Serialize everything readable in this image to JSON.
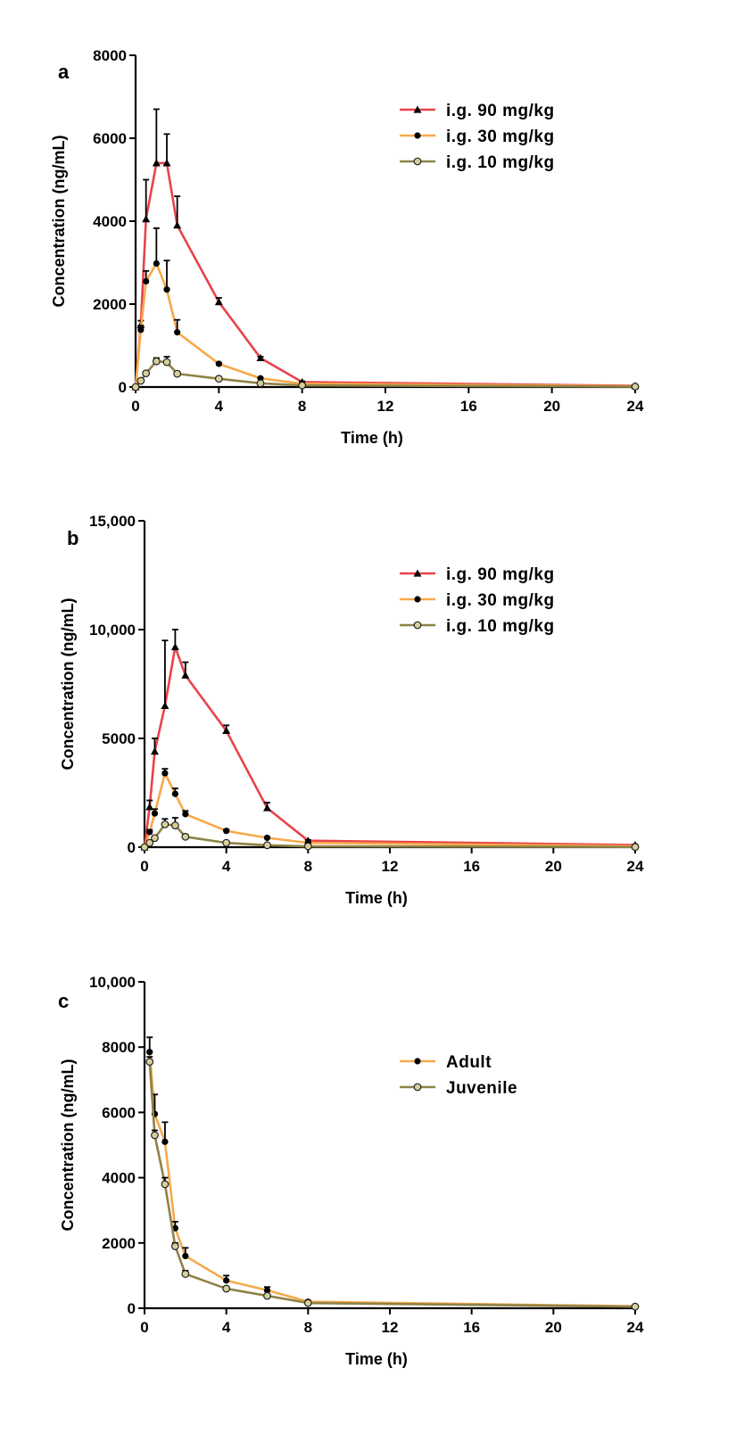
{
  "colors": {
    "red": "#e8434b",
    "orange": "#f7a94b",
    "olive": "#8f8246",
    "marker_dark": "#000000",
    "marker_light": "#d6cf9a"
  },
  "chart_data": [
    {
      "panel": "a",
      "type": "line",
      "xlabel": "Time (h)",
      "ylabel": "Concentration (ng/mL)",
      "xlim": [
        0,
        24
      ],
      "ylim": [
        0,
        8000
      ],
      "xticks": [
        0,
        4,
        8,
        12,
        16,
        20,
        24
      ],
      "xtick_labels": [
        "0",
        "4",
        "8",
        "12",
        "16",
        "20",
        "24"
      ],
      "yticks": [
        0,
        2000,
        4000,
        6000,
        8000
      ],
      "ytick_labels": [
        "0",
        "2000",
        "4000",
        "6000",
        "8000"
      ],
      "legend_position": "top-right",
      "series": [
        {
          "name": "i.g. 90 mg/kg",
          "color": "#e8434b",
          "marker": "triangle",
          "x": [
            0,
            0.25,
            0.5,
            1,
            1.5,
            2,
            4,
            6,
            8,
            24
          ],
          "y": [
            0,
            1500,
            4050,
            5400,
            5400,
            3900,
            2050,
            700,
            120,
            30
          ],
          "err": [
            0,
            100,
            950,
            1300,
            700,
            700,
            100,
            30,
            20,
            5
          ]
        },
        {
          "name": "i.g. 30 mg/kg",
          "color": "#f7a94b",
          "marker": "circle",
          "x": [
            0,
            0.25,
            0.5,
            1,
            1.5,
            2,
            4,
            6,
            8,
            24
          ],
          "y": [
            0,
            1380,
            2550,
            2980,
            2350,
            1320,
            560,
            210,
            80,
            20
          ],
          "err": [
            0,
            100,
            250,
            850,
            700,
            300,
            30,
            20,
            10,
            5
          ]
        },
        {
          "name": "i.g. 10 mg/kg",
          "color": "#8f8246",
          "marker": "circle-open",
          "x": [
            0,
            0.25,
            0.5,
            1,
            1.5,
            2,
            4,
            6,
            8,
            24
          ],
          "y": [
            0,
            150,
            330,
            620,
            600,
            320,
            200,
            90,
            40,
            10
          ],
          "err": [
            0,
            20,
            40,
            80,
            130,
            50,
            50,
            20,
            10,
            3
          ]
        }
      ]
    },
    {
      "panel": "b",
      "type": "line",
      "xlabel": "Time (h)",
      "ylabel": "Concentration (ng/mL)",
      "xlim": [
        0,
        24
      ],
      "ylim": [
        0,
        15000
      ],
      "xticks": [
        0,
        4,
        8,
        12,
        16,
        20,
        24
      ],
      "xtick_labels": [
        "0",
        "4",
        "8",
        "12",
        "16",
        "20",
        "24"
      ],
      "yticks": [
        0,
        5000,
        10000,
        15000
      ],
      "ytick_labels": [
        "0",
        "5000",
        "10,000",
        "15,000"
      ],
      "legend_position": "top-right",
      "series": [
        {
          "name": "i.g. 90 mg/kg",
          "color": "#e8434b",
          "marker": "triangle",
          "x": [
            0,
            0.25,
            0.5,
            1,
            1.5,
            2,
            4,
            6,
            8,
            24
          ],
          "y": [
            0,
            1850,
            4400,
            6500,
            9200,
            7900,
            5350,
            1800,
            300,
            100
          ],
          "err": [
            0,
            300,
            600,
            3000,
            800,
            600,
            250,
            250,
            30,
            20
          ]
        },
        {
          "name": "i.g. 30 mg/kg",
          "color": "#f7a94b",
          "marker": "circle",
          "x": [
            0,
            0.25,
            0.5,
            1,
            1.5,
            2,
            4,
            6,
            8,
            24
          ],
          "y": [
            0,
            700,
            1550,
            3400,
            2450,
            1520,
            750,
            430,
            200,
            50
          ],
          "err": [
            0,
            100,
            200,
            200,
            250,
            150,
            60,
            40,
            20,
            5
          ]
        },
        {
          "name": "i.g. 10 mg/kg",
          "color": "#8f8246",
          "marker": "circle-open",
          "x": [
            0,
            0.25,
            0.5,
            1,
            1.5,
            2,
            4,
            6,
            8,
            24
          ],
          "y": [
            0,
            200,
            420,
            1050,
            1000,
            480,
            200,
            90,
            40,
            10
          ],
          "err": [
            0,
            40,
            80,
            250,
            350,
            100,
            40,
            20,
            10,
            3
          ]
        }
      ]
    },
    {
      "panel": "c",
      "type": "line",
      "xlabel": "Time (h)",
      "ylabel": "Concentration (ng/mL)",
      "xlim": [
        0,
        24
      ],
      "ylim": [
        0,
        10000
      ],
      "xticks": [
        0,
        4,
        8,
        12,
        16,
        20,
        24
      ],
      "xtick_labels": [
        "0",
        "4",
        "8",
        "12",
        "16",
        "20",
        "24"
      ],
      "yticks": [
        0,
        2000,
        4000,
        6000,
        8000,
        10000
      ],
      "ytick_labels": [
        "0",
        "2000",
        "4000",
        "6000",
        "8000",
        "10,000"
      ],
      "legend_position": "top-right",
      "series": [
        {
          "name": "Adult",
          "color": "#f7a94b",
          "marker": "circle",
          "x": [
            0.25,
            0.5,
            1,
            1.5,
            2,
            4,
            6,
            8,
            24
          ],
          "y": [
            7850,
            5950,
            5100,
            2450,
            1600,
            850,
            550,
            200,
            60
          ],
          "err": [
            450,
            600,
            600,
            200,
            250,
            150,
            100,
            30,
            10
          ]
        },
        {
          "name": "Juvenile",
          "color": "#8f8246",
          "marker": "circle-open",
          "x": [
            0.25,
            0.5,
            1,
            1.5,
            2,
            4,
            6,
            8,
            24
          ],
          "y": [
            7550,
            5300,
            3800,
            1900,
            1050,
            600,
            380,
            160,
            50
          ],
          "err": [
            150,
            150,
            200,
            100,
            100,
            60,
            40,
            20,
            5
          ]
        }
      ]
    }
  ]
}
